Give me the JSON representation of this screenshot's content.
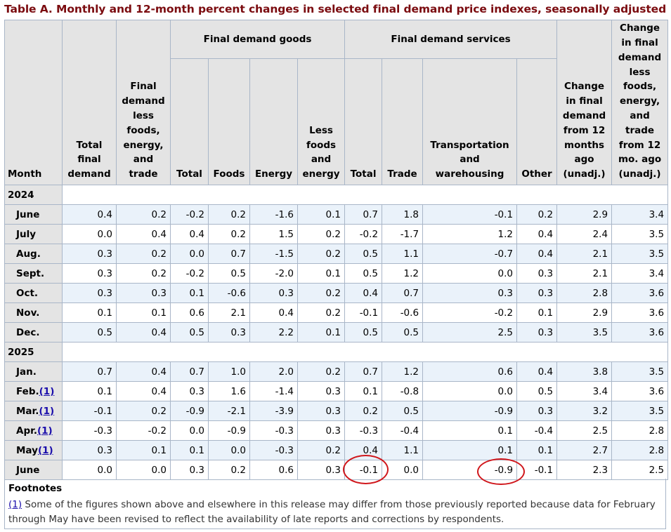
{
  "title": "Table A. Monthly and 12-month percent changes in selected final demand price indexes, seasonally adjusted",
  "headers": {
    "month": "Month",
    "total_final_demand": "Total final demand",
    "fd_less": "Final demand less foods, energy, and trade",
    "goods_group": "Final demand goods",
    "services_group": "Final demand services",
    "goods_total": "Total",
    "goods_foods": "Foods",
    "goods_energy": "Energy",
    "goods_less": "Less foods and energy",
    "serv_total": "Total",
    "serv_trade": "Trade",
    "serv_transport": "Transportation and warehousing",
    "serv_other": "Other",
    "change_12": "Change in final demand from 12 months ago (unadj.)",
    "change_12_less": "Change in final demand less foods, energy, and trade from 12 mo. ago (unadj.)"
  },
  "years": [
    "2024",
    "2025"
  ],
  "footnote_ref": "(1)",
  "rows": [
    {
      "month": "June",
      "fn": "",
      "v": [
        "0.4",
        "0.2",
        "-0.2",
        "0.2",
        "-1.6",
        "0.1",
        "0.7",
        "1.8",
        "-0.1",
        "0.2",
        "2.9",
        "3.4"
      ]
    },
    {
      "month": "July",
      "fn": "",
      "v": [
        "0.0",
        "0.4",
        "0.4",
        "0.2",
        "1.5",
        "0.2",
        "-0.2",
        "-1.7",
        "1.2",
        "0.4",
        "2.4",
        "3.5"
      ]
    },
    {
      "month": "Aug.",
      "fn": "",
      "v": [
        "0.3",
        "0.2",
        "0.0",
        "0.7",
        "-1.5",
        "0.2",
        "0.5",
        "1.1",
        "-0.7",
        "0.4",
        "2.1",
        "3.5"
      ]
    },
    {
      "month": "Sept.",
      "fn": "",
      "v": [
        "0.3",
        "0.2",
        "-0.2",
        "0.5",
        "-2.0",
        "0.1",
        "0.5",
        "1.2",
        "0.0",
        "0.3",
        "2.1",
        "3.4"
      ]
    },
    {
      "month": "Oct.",
      "fn": "",
      "v": [
        "0.3",
        "0.3",
        "0.1",
        "-0.6",
        "0.3",
        "0.2",
        "0.4",
        "0.7",
        "0.3",
        "0.3",
        "2.8",
        "3.6"
      ]
    },
    {
      "month": "Nov.",
      "fn": "",
      "v": [
        "0.1",
        "0.1",
        "0.6",
        "2.1",
        "0.4",
        "0.2",
        "-0.1",
        "-0.6",
        "-0.2",
        "0.1",
        "2.9",
        "3.6"
      ]
    },
    {
      "month": "Dec.",
      "fn": "",
      "v": [
        "0.5",
        "0.4",
        "0.5",
        "0.3",
        "2.2",
        "0.1",
        "0.5",
        "0.5",
        "2.5",
        "0.3",
        "3.5",
        "3.6"
      ]
    },
    {
      "month": "Jan.",
      "fn": "",
      "v": [
        "0.7",
        "0.4",
        "0.7",
        "1.0",
        "2.0",
        "0.2",
        "0.7",
        "1.2",
        "0.6",
        "0.4",
        "3.8",
        "3.5"
      ]
    },
    {
      "month": "Feb.",
      "fn": "(1)",
      "v": [
        "0.1",
        "0.4",
        "0.3",
        "1.6",
        "-1.4",
        "0.3",
        "0.1",
        "-0.8",
        "0.0",
        "0.5",
        "3.4",
        "3.6"
      ]
    },
    {
      "month": "Mar.",
      "fn": "(1)",
      "v": [
        "-0.1",
        "0.2",
        "-0.9",
        "-2.1",
        "-3.9",
        "0.3",
        "0.2",
        "0.5",
        "-0.9",
        "0.3",
        "3.2",
        "3.5"
      ]
    },
    {
      "month": "Apr.",
      "fn": "(1)",
      "v": [
        "-0.3",
        "-0.2",
        "0.0",
        "-0.9",
        "-0.3",
        "0.3",
        "-0.3",
        "-0.4",
        "0.1",
        "-0.4",
        "2.5",
        "2.8"
      ]
    },
    {
      "month": "May",
      "fn": "(1)",
      "v": [
        "0.3",
        "0.1",
        "0.1",
        "0.0",
        "-0.3",
        "0.2",
        "0.4",
        "1.1",
        "0.1",
        "0.1",
        "2.7",
        "2.8"
      ]
    },
    {
      "month": "June",
      "fn": "",
      "v": [
        "0.0",
        "0.0",
        "0.3",
        "0.2",
        "0.6",
        "0.3",
        "-0.1",
        "0.0",
        "-0.9",
        "-0.1",
        "2.3",
        "2.5"
      ]
    }
  ],
  "footnotes": {
    "heading": "Footnotes",
    "ref": "(1)",
    "text": " Some of the figures shown above and elsewhere in this release may differ from those previously reported because data for February through May have been revised to reflect the availability of late reports and corrections by respondents."
  },
  "annotation_color": "#d0161b"
}
